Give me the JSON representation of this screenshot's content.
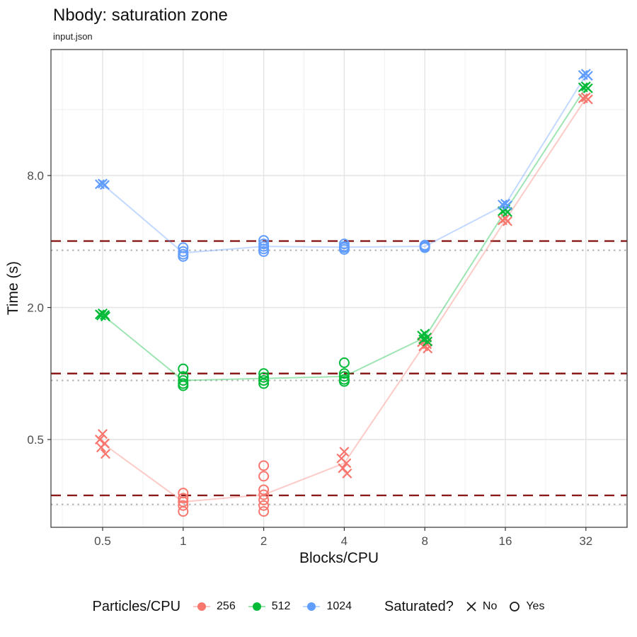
{
  "title": "Nbody: saturation zone",
  "subtitle": "input.json",
  "legend": {
    "color_group": {
      "title": "Particles/CPU",
      "items": [
        {
          "label": "256",
          "color": "#F8766D"
        },
        {
          "label": "512",
          "color": "#00BA38"
        },
        {
          "label": "1024",
          "color": "#619CFF"
        }
      ]
    },
    "shape_group": {
      "title": "Saturated?",
      "items": [
        {
          "label": "No",
          "shape": "x"
        },
        {
          "label": "Yes",
          "shape": "circle"
        }
      ]
    }
  },
  "chart_data": {
    "type": "scatter",
    "title": "Nbody: saturation zone",
    "subtitle": "input.json",
    "xlabel": "Blocks/CPU",
    "ylabel": "Time (s)",
    "x_scale": "log2",
    "y_scale": "log",
    "x_ticks": [
      0.5,
      1,
      2,
      4,
      8,
      16,
      32
    ],
    "x_tick_labels": [
      "0.5",
      "1",
      "2",
      "4",
      "8",
      "16",
      "32"
    ],
    "y_ticks": [
      0.5,
      2.0,
      8.0
    ],
    "y_tick_labels": [
      "0.5",
      "2.0",
      "8.0"
    ],
    "x_range": [
      0.32,
      45.3
    ],
    "y_range": [
      0.21,
      30
    ],
    "grid": {
      "major_color": "#E4E4E4",
      "minor_color": "#F0F0F0"
    },
    "panel_border_color": "#333333",
    "axis_tick_color": "#333333",
    "tick_label_color": "#4D4D4D",
    "legend_position": "bottom",
    "reference_lines": {
      "dashed": {
        "color": "#8B1A1A",
        "values": [
          4.02,
          1.0,
          0.278
        ]
      },
      "dotted": {
        "color": "#B3B3B3",
        "values": [
          3.65,
          0.93,
          0.253
        ]
      }
    },
    "series": [
      {
        "name": "256",
        "color": "#F8766D",
        "line_values": [
          0.48,
          0.26,
          0.28,
          0.39,
          1.36,
          5.0,
          18.0
        ],
        "clusters": [
          {
            "x": 0.5,
            "saturated": false,
            "values": [
              0.53,
              0.5,
              0.48,
              0.46,
              0.43
            ]
          },
          {
            "x": 1,
            "saturated": true,
            "values": [
              0.285,
              0.27,
              0.26,
              0.25,
              0.235
            ]
          },
          {
            "x": 2,
            "saturated": true,
            "values": [
              0.38,
              0.34,
              0.295,
              0.28,
              0.265,
              0.25,
              0.235
            ]
          },
          {
            "x": 4,
            "saturated": false,
            "values": [
              0.44,
              0.41,
              0.39,
              0.37,
              0.35
            ]
          },
          {
            "x": 8,
            "saturated": false,
            "values": [
              1.42,
              1.39,
              1.36,
              1.33,
              1.3
            ]
          },
          {
            "x": 16,
            "saturated": false,
            "values": [
              5.1,
              5.0,
              4.95
            ]
          },
          {
            "x": 32,
            "saturated": false,
            "values": [
              18.2,
              18.0,
              17.8
            ]
          }
        ]
      },
      {
        "name": "512",
        "color": "#00BA38",
        "line_values": [
          1.85,
          0.93,
          0.95,
          0.97,
          1.46,
          5.5,
          20.2
        ],
        "clusters": [
          {
            "x": 0.5,
            "saturated": false,
            "values": [
              1.88,
              1.86,
              1.85,
              1.84,
              1.82
            ]
          },
          {
            "x": 1,
            "saturated": true,
            "values": [
              1.05,
              0.97,
              0.93,
              0.9,
              0.88
            ]
          },
          {
            "x": 2,
            "saturated": true,
            "values": [
              1.0,
              0.96,
              0.93,
              0.9
            ]
          },
          {
            "x": 4,
            "saturated": true,
            "values": [
              1.12,
              1.0,
              0.97,
              0.94,
              0.92
            ]
          },
          {
            "x": 8,
            "saturated": false,
            "values": [
              1.52,
              1.49,
              1.46,
              1.43,
              1.4
            ]
          },
          {
            "x": 16,
            "saturated": false,
            "values": [
              5.6,
              5.5,
              5.45
            ]
          },
          {
            "x": 32,
            "saturated": false,
            "values": [
              20.4,
              20.2,
              20.0
            ]
          }
        ]
      },
      {
        "name": "1024",
        "color": "#619CFF",
        "line_values": [
          7.3,
          3.55,
          3.8,
          3.77,
          3.8,
          5.9,
          23.0
        ],
        "clusters": [
          {
            "x": 0.5,
            "saturated": false,
            "values": [
              7.35,
              7.3,
              7.25
            ]
          },
          {
            "x": 1,
            "saturated": true,
            "values": [
              3.75,
              3.6,
              3.5,
              3.42
            ]
          },
          {
            "x": 2,
            "saturated": true,
            "values": [
              4.05,
              3.9,
              3.8,
              3.7,
              3.6
            ]
          },
          {
            "x": 4,
            "saturated": true,
            "values": [
              3.9,
              3.8,
              3.75,
              3.68
            ]
          },
          {
            "x": 8,
            "saturated": true,
            "values": [
              3.85,
              3.8,
              3.75
            ]
          },
          {
            "x": 16,
            "saturated": false,
            "values": [
              5.95,
              5.9,
              5.85
            ]
          },
          {
            "x": 32,
            "saturated": false,
            "values": [
              23.3,
              23.0,
              22.8
            ]
          }
        ]
      }
    ]
  }
}
